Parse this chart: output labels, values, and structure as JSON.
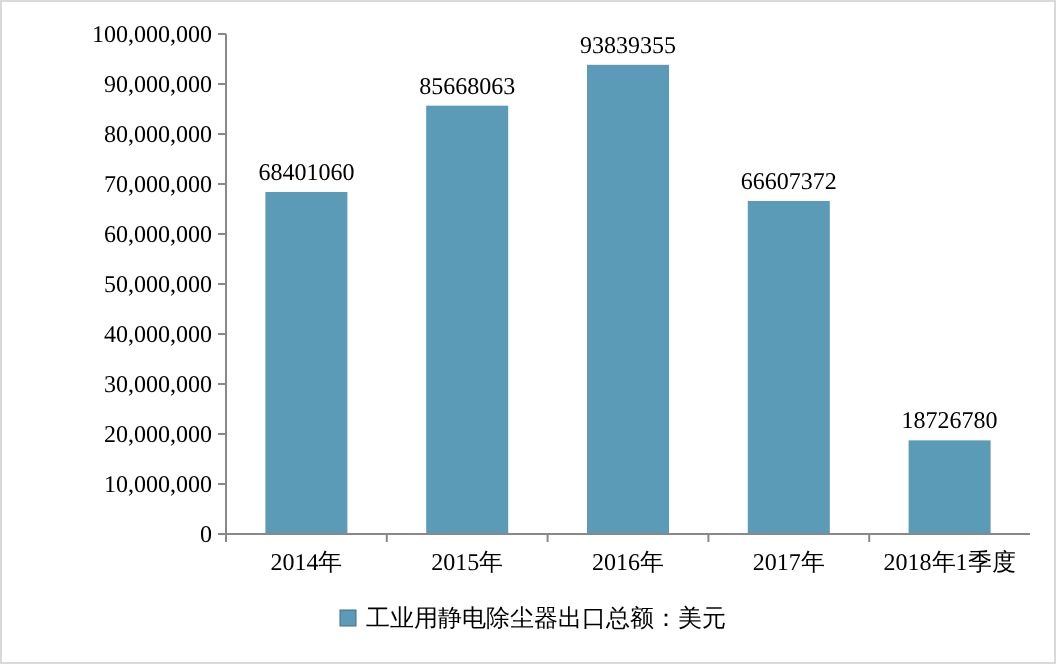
{
  "chart_data": {
    "type": "bar",
    "categories": [
      "2014年",
      "2015年",
      "2016年",
      "2017年",
      "2018年1季度"
    ],
    "series": [
      {
        "name": "工业用静电除尘器出口总额：美元",
        "color": "#5b9bb8",
        "values": [
          68401060,
          85668063,
          93839355,
          66607372,
          18726780
        ]
      }
    ],
    "ylim": [
      0,
      100000000
    ],
    "yticks": [
      {
        "value": 0,
        "label": "0"
      },
      {
        "value": 10000000,
        "label": "10,000,000"
      },
      {
        "value": 20000000,
        "label": "20,000,000"
      },
      {
        "value": 30000000,
        "label": "30,000,000"
      },
      {
        "value": 40000000,
        "label": "40,000,000"
      },
      {
        "value": 50000000,
        "label": "50,000,000"
      },
      {
        "value": 60000000,
        "label": "60,000,000"
      },
      {
        "value": 70000000,
        "label": "70,000,000"
      },
      {
        "value": 80000000,
        "label": "80,000,000"
      },
      {
        "value": 90000000,
        "label": "90,000,000"
      },
      {
        "value": 100000000,
        "label": "100,000,000"
      }
    ],
    "data_labels": true,
    "legend": "bottom",
    "grid": false
  }
}
